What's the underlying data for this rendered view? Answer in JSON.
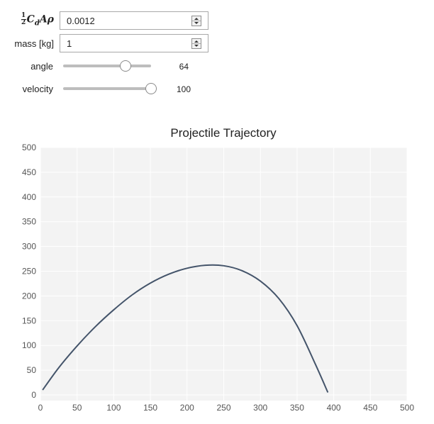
{
  "controls": {
    "drag_coeff": {
      "label_math": "C",
      "value": "0.0012"
    },
    "mass": {
      "label": "mass [kg]",
      "value": "1"
    },
    "angle": {
      "label": "angle",
      "value": 64,
      "min": 0,
      "max": 90,
      "display": "64"
    },
    "velocity": {
      "label": "velocity",
      "value": 100,
      "min": 0,
      "max": 100,
      "display": "100"
    }
  },
  "chart_data": {
    "type": "line",
    "title": "Projectile Trajectory",
    "xlabel": "",
    "ylabel": "",
    "xlim": [
      0,
      500
    ],
    "ylim": [
      0,
      500
    ],
    "xticks": [
      0,
      50,
      100,
      150,
      200,
      250,
      300,
      350,
      400,
      450,
      500
    ],
    "yticks": [
      0,
      50,
      100,
      150,
      200,
      250,
      300,
      350,
      400,
      450,
      500
    ],
    "grid": true,
    "line_color": "#44546a",
    "plot_bg": "#f3f3f3",
    "series": [
      {
        "x": [
          3,
          25,
          50,
          75,
          100,
          125,
          150,
          175,
          200,
          225,
          250,
          275,
          300,
          325,
          350,
          375,
          392
        ],
        "y": [
          10,
          55,
          99,
          138,
          172,
          202,
          226,
          244,
          256,
          262,
          261,
          251,
          230,
          195,
          140,
          62,
          5
        ]
      }
    ]
  }
}
